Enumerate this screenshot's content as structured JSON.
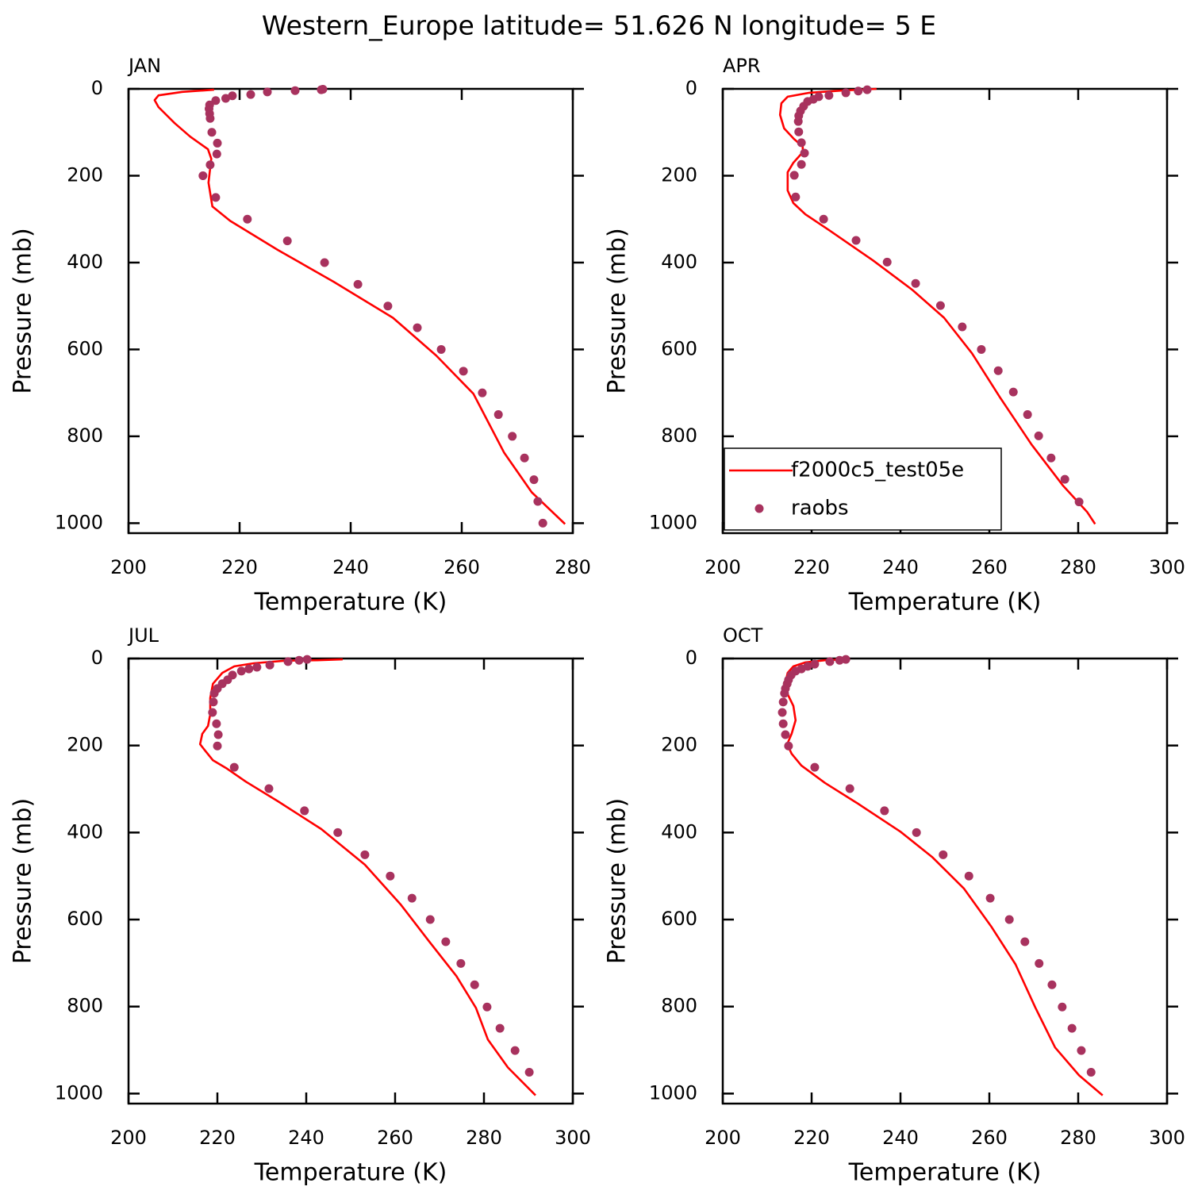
{
  "title": "Western_Europe  latitude= 51.626 N longitude= 5 E",
  "chart_data": [
    {
      "type": "line",
      "title": "JAN",
      "xlabel": "Temperature (K)",
      "ylabel": "Pressure (mb)",
      "xlim": [
        200,
        280
      ],
      "xticks": [
        200,
        220,
        240,
        260,
        280
      ],
      "ylim": [
        0,
        1023
      ],
      "yticks": [
        0,
        200,
        400,
        600,
        800,
        1000
      ],
      "y_inverted": true,
      "series": [
        {
          "color": "#ff0000",
          "marker": "line",
          "x": [
            215.4,
            209.7,
            205.4,
            204.7,
            205.4,
            208.3,
            211.1,
            214.3,
            214.9,
            214.4,
            215.1,
            218.3,
            226.9,
            236.9,
            247.6,
            255.4,
            262.1,
            267.6,
            272.6,
            278.6
          ],
          "values": [
            2,
            7,
            15,
            26,
            42,
            79,
            110,
            139,
            161,
            216,
            271,
            304,
            371,
            444,
            527,
            614,
            702,
            837,
            929,
            1002
          ]
        },
        {
          "color": "#a8325e",
          "marker": "dot",
          "x": [
            235,
            234.7,
            230,
            225,
            222,
            218.7,
            217.5,
            215.7,
            214.6,
            214.5,
            214.6,
            214.7,
            215,
            216,
            215.9,
            214.7,
            213.4,
            215.7,
            221.4,
            228.6,
            235.3,
            241.3,
            246.7,
            252,
            256.3,
            260.3,
            263.7,
            266.6,
            269.1,
            271.3,
            273,
            273.7,
            274.6
          ],
          "values": [
            1,
            2,
            4,
            7,
            13,
            16,
            22,
            27,
            37,
            46,
            57,
            68,
            100,
            125,
            150,
            175,
            200,
            250,
            300,
            350,
            400,
            450,
            500,
            550,
            600,
            650,
            700,
            750,
            800,
            850,
            900,
            950,
            1000
          ]
        }
      ]
    },
    {
      "type": "line",
      "title": "APR",
      "xlabel": "Temperature (K)",
      "ylabel": "Pressure (mb)",
      "xlim": [
        200,
        300
      ],
      "xticks": [
        200,
        220,
        240,
        260,
        280,
        300
      ],
      "ylim": [
        0,
        1023
      ],
      "yticks": [
        0,
        200,
        400,
        600,
        800,
        1000
      ],
      "y_inverted": true,
      "legend": "lower left",
      "series": [
        {
          "name": "f2000c5_test05e",
          "color": "#ff0000",
          "marker": "line",
          "x": [
            234.6,
            226.6,
            219.5,
            214.6,
            213.2,
            212.9,
            213.8,
            216.0,
            218.0,
            218.0,
            215.9,
            214.6,
            214.6,
            215.9,
            218.6,
            223.9,
            233.8,
            242.7,
            249.8,
            256.1,
            262.3,
            269.5,
            276.6,
            282.0,
            283.8
          ],
          "values": [
            0,
            4,
            9,
            18,
            33,
            60,
            91,
            115,
            133,
            146,
            170,
            192,
            234,
            263,
            289,
            325,
            395,
            463,
            527,
            609,
            709,
            819,
            914,
            974,
            1002
          ]
        },
        {
          "name": "raobs",
          "color": "#a8325e",
          "marker": "dot",
          "x": [
            232.5,
            230.5,
            227.7,
            223.9,
            221.6,
            220.4,
            219.1,
            218.2,
            217.5,
            217.1,
            217,
            217.1,
            217.7,
            218.4,
            217.7,
            216.1,
            216.4,
            222.7,
            230,
            237,
            243.4,
            249,
            253.9,
            258.2,
            262,
            265.4,
            268.6,
            271.1,
            273.9,
            277,
            280.2
          ],
          "values": [
            2,
            5,
            9,
            15,
            18,
            24,
            29,
            40,
            51,
            62,
            75,
            99,
            124,
            148,
            174,
            199,
            249,
            300,
            349,
            399,
            448,
            499,
            548,
            600,
            649,
            698,
            750,
            799,
            850,
            899,
            951
          ]
        }
      ]
    },
    {
      "type": "line",
      "title": "JUL",
      "xlabel": "Temperature (K)",
      "ylabel": "Pressure (mb)",
      "xlim": [
        200,
        300
      ],
      "xticks": [
        200,
        220,
        240,
        260,
        280,
        300
      ],
      "ylim": [
        0,
        1023
      ],
      "yticks": [
        0,
        200,
        400,
        600,
        800,
        1000
      ],
      "y_inverted": true,
      "series": [
        {
          "color": "#ff0000",
          "marker": "line",
          "x": [
            248.2,
            242.5,
            235.4,
            228.2,
            223.8,
            221.1,
            219,
            218.4,
            218.4,
            217.9,
            216.6,
            216.1,
            217.1,
            219,
            222,
            226.4,
            233.6,
            243.4,
            253.2,
            261.3,
            267.5,
            273.8,
            278.2,
            280.9,
            285.4,
            291.6
          ],
          "values": [
            2,
            4,
            5,
            11,
            18,
            33,
            58,
            91,
            128,
            155,
            173,
            197,
            210,
            234,
            252,
            283,
            328,
            392,
            474,
            566,
            648,
            730,
            803,
            876,
            940,
            1004
          ]
        },
        {
          "color": "#a8325e",
          "marker": "dot",
          "x": [
            240.2,
            238.4,
            235.9,
            231.8,
            228.9,
            227.1,
            225.4,
            223.4,
            222.3,
            221.1,
            220,
            219.3,
            219.1,
            218.9,
            219.8,
            220.2,
            220,
            223.8,
            231.6,
            239.6,
            247.1,
            253.2,
            258.9,
            263.8,
            267.9,
            271.4,
            274.8,
            277.9,
            280.7,
            283.6,
            287,
            290.2
          ],
          "values": [
            2,
            4,
            7,
            15,
            20,
            24,
            29,
            38,
            49,
            58,
            69,
            80,
            100,
            124,
            150,
            175,
            201,
            250,
            299,
            350,
            400,
            451,
            500,
            551,
            600,
            651,
            701,
            750,
            801,
            850,
            901,
            951
          ]
        }
      ]
    },
    {
      "type": "line",
      "title": "OCT",
      "xlabel": "Temperature (K)",
      "ylabel": "Pressure (mb)",
      "xlim": [
        200,
        300
      ],
      "xticks": [
        200,
        220,
        240,
        260,
        280,
        300
      ],
      "ylim": [
        0,
        1023
      ],
      "yticks": [
        0,
        200,
        400,
        600,
        800,
        1000
      ],
      "y_inverted": true,
      "series": [
        {
          "color": "#ff0000",
          "marker": "line",
          "x": [
            227.5,
            223,
            218.6,
            215.9,
            214.6,
            214.1,
            214.6,
            215.9,
            216.4,
            215.5,
            214.5,
            215.5,
            217.7,
            223,
            230.2,
            240,
            247.1,
            254.3,
            260.5,
            265.9,
            270.4,
            274.8,
            280.2,
            285.5
          ],
          "values": [
            2,
            4,
            9,
            18,
            33,
            55,
            82,
            109,
            142,
            173,
            197,
            219,
            246,
            286,
            332,
            398,
            456,
            529,
            617,
            703,
            803,
            894,
            958,
            1004
          ]
        },
        {
          "color": "#a8325e",
          "marker": "dot",
          "x": [
            227.7,
            226.3,
            224.1,
            220.7,
            219.1,
            217.7,
            216.4,
            215.4,
            214.8,
            214.5,
            214.1,
            213.9,
            213.6,
            213.4,
            213.6,
            214.1,
            214.8,
            220.7,
            228.6,
            236.4,
            243.6,
            249.6,
            255.4,
            260.2,
            264.5,
            268,
            271.2,
            274.1,
            276.4,
            278.6,
            280.7,
            282.9
          ],
          "values": [
            2,
            4,
            7,
            13,
            18,
            24,
            29,
            38,
            49,
            58,
            69,
            80,
            100,
            124,
            150,
            175,
            201,
            250,
            299,
            350,
            400,
            451,
            500,
            551,
            600,
            651,
            701,
            750,
            801,
            850,
            901,
            951
          ]
        }
      ]
    }
  ]
}
